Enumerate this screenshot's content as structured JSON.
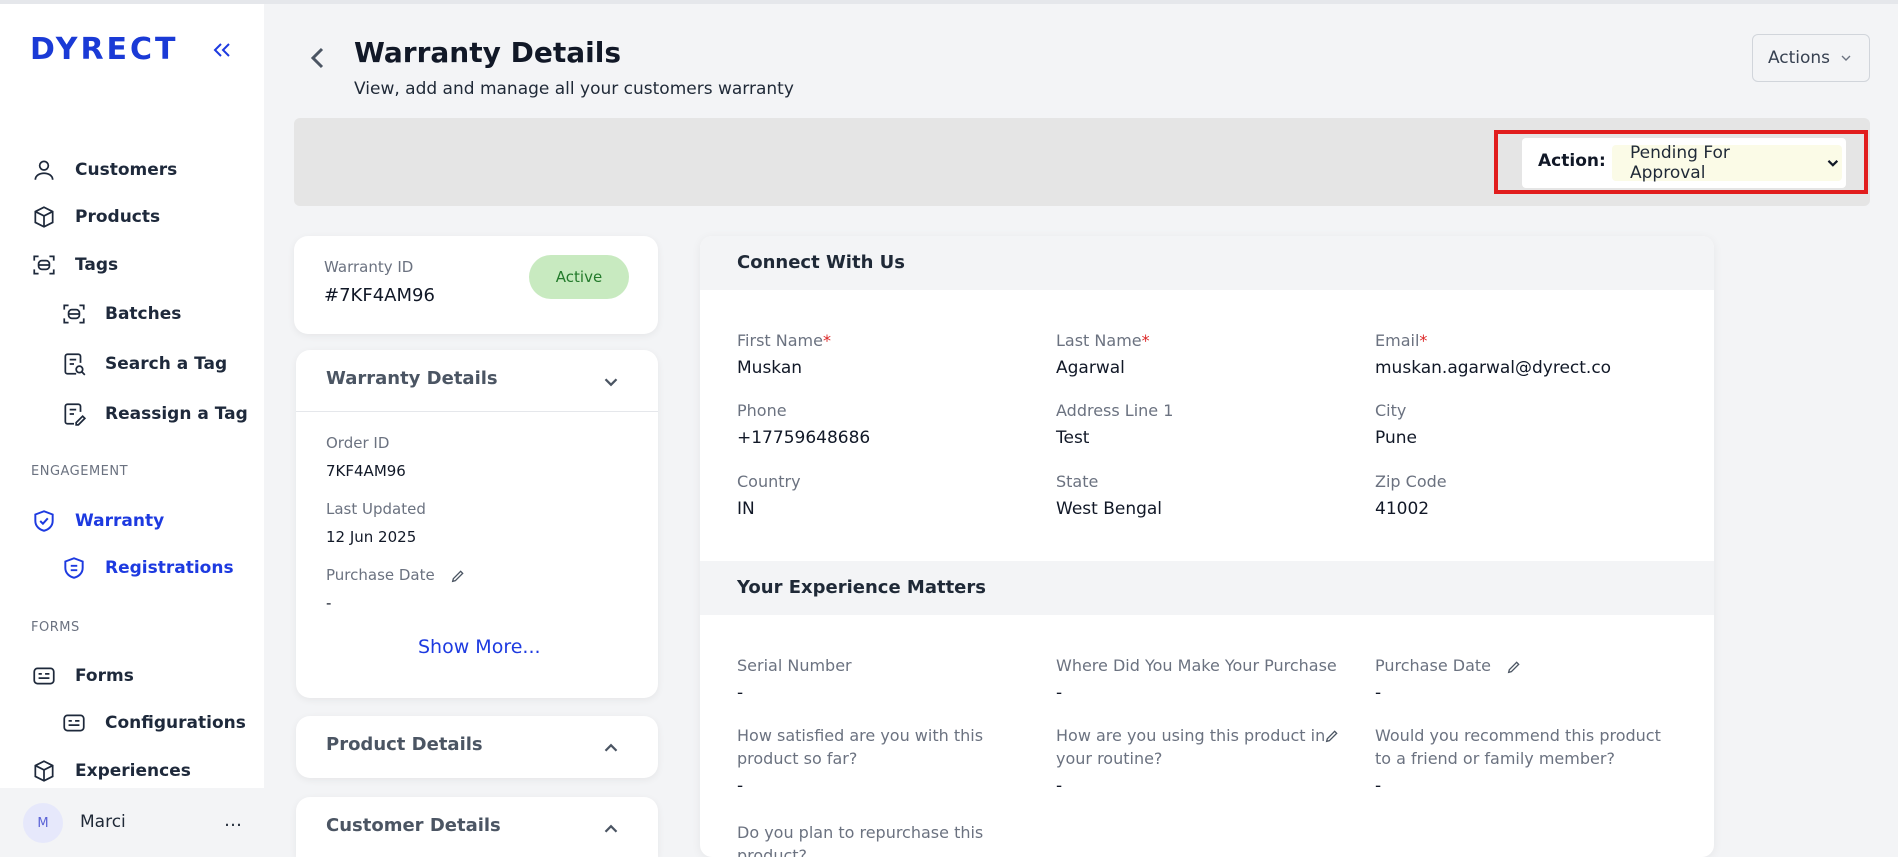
{
  "brand": {
    "logo_text": "DYRECT",
    "accent": "#1d3ae0"
  },
  "sidebar": {
    "items": [
      {
        "label": "Customers",
        "icon": "user-icon"
      },
      {
        "label": "Products",
        "icon": "box-icon"
      },
      {
        "label": "Tags",
        "icon": "tag-scan-icon"
      },
      {
        "label": "Batches",
        "icon": "tag-scan-icon"
      },
      {
        "label": "Search a Tag",
        "icon": "search-document-icon"
      },
      {
        "label": "Reassign a Tag",
        "icon": "edit-document-icon"
      },
      {
        "label": "Warranty",
        "icon": "shield-check-icon"
      },
      {
        "label": "Registrations",
        "icon": "shield-list-icon"
      },
      {
        "label": "Forms",
        "icon": "form-icon"
      },
      {
        "label": "Configurations",
        "icon": "form-icon"
      },
      {
        "label": "Experiences",
        "icon": "box-icon"
      }
    ],
    "sections": {
      "engagement": "ENGAGEMENT",
      "forms": "FORMS"
    },
    "user": {
      "initial": "M",
      "name": "Marci",
      "more": "…"
    }
  },
  "header": {
    "title": "Warranty Details",
    "subtitle": "View, add and manage all your customers warranty",
    "actions_label": "Actions"
  },
  "action_bar": {
    "label": "Action:",
    "selected": "Pending For Approval"
  },
  "warranty_card": {
    "id_label": "Warranty ID",
    "id_value": "#7KF4AM96",
    "status": "Active"
  },
  "details_card": {
    "title": "Warranty Details",
    "order_id_label": "Order ID",
    "order_id": "7KF4AM96",
    "last_updated_label": "Last Updated",
    "last_updated": "12 Jun 2025",
    "purchase_date_label": "Purchase Date",
    "purchase_date": "-",
    "show_more": "Show More..."
  },
  "product_card": {
    "title": "Product Details"
  },
  "customer_card": {
    "title": "Customer Details"
  },
  "connect": {
    "title": "Connect With Us",
    "first_name_label": "First Name",
    "first_name": "Muskan",
    "last_name_label": "Last Name",
    "last_name": "Agarwal",
    "email_label": "Email",
    "email": "muskan.agarwal@dyrect.co",
    "phone_label": "Phone",
    "phone": "+17759648686",
    "address_label": "Address Line 1",
    "address": "Test",
    "city_label": "City",
    "city": "Pune",
    "country_label": "Country",
    "country": "IN",
    "state_label": "State",
    "state": "West Bengal",
    "zip_label": "Zip Code",
    "zip": "41002",
    "required_mark": "*"
  },
  "experience": {
    "title": "Your Experience Matters",
    "serial_label": "Serial Number",
    "serial": "-",
    "where_label": "Where Did You Make Your Purchase",
    "where": "-",
    "purchase_date_label": "Purchase Date",
    "purchase_date": "-",
    "satisfied_label": "How satisfied are you with this product so far?",
    "satisfied": "-",
    "routine_label": "How are you using this product in your routine?",
    "routine": "-",
    "recommend_label": "Would you recommend this product to a friend or family member?",
    "recommend": "-",
    "repurchase_label": "Do you plan to repurchase this product?"
  }
}
